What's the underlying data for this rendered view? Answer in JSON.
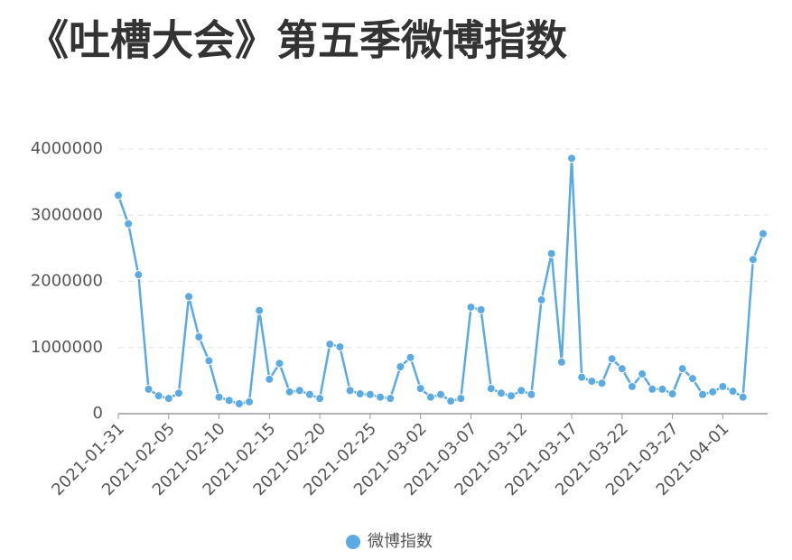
{
  "chart_data": {
    "type": "line",
    "title": "《吐槽大会》第五季微博指数",
    "categories": [
      "2021-01-31",
      null,
      null,
      null,
      null,
      "2021-02-05",
      null,
      null,
      null,
      null,
      "2021-02-10",
      null,
      null,
      null,
      null,
      "2021-02-15",
      null,
      null,
      null,
      null,
      "2021-02-20",
      null,
      null,
      null,
      null,
      "2021-02-25",
      null,
      null,
      null,
      null,
      "2021-03-02",
      null,
      null,
      null,
      null,
      "2021-03-07",
      null,
      null,
      null,
      null,
      "2021-03-12",
      null,
      null,
      null,
      null,
      "2021-03-17",
      null,
      null,
      null,
      null,
      "2021-03-22",
      null,
      null,
      null,
      null,
      "2021-03-27",
      null,
      null,
      null,
      null,
      "2021-04-01",
      null,
      null,
      null,
      null
    ],
    "series": [
      {
        "name": "微博指数",
        "color": "#5aaae4",
        "values": [
          3300000,
          2870000,
          2100000,
          370000,
          270000,
          230000,
          310000,
          1770000,
          1160000,
          800000,
          250000,
          200000,
          150000,
          180000,
          1560000,
          520000,
          760000,
          330000,
          350000,
          290000,
          230000,
          1050000,
          1010000,
          350000,
          300000,
          290000,
          250000,
          230000,
          710000,
          850000,
          380000,
          250000,
          290000,
          190000,
          230000,
          1610000,
          1570000,
          380000,
          310000,
          270000,
          350000,
          290000,
          1720000,
          2420000,
          780000,
          3860000,
          550000,
          490000,
          460000,
          830000,
          680000,
          410000,
          600000,
          370000,
          370000,
          300000,
          680000,
          530000,
          290000,
          330000,
          410000,
          340000,
          250000,
          2330000,
          2720000
        ]
      }
    ],
    "ylim": [
      0,
      4000000
    ],
    "yticks": [
      0,
      1000000,
      2000000,
      3000000,
      4000000
    ],
    "grid": true
  }
}
